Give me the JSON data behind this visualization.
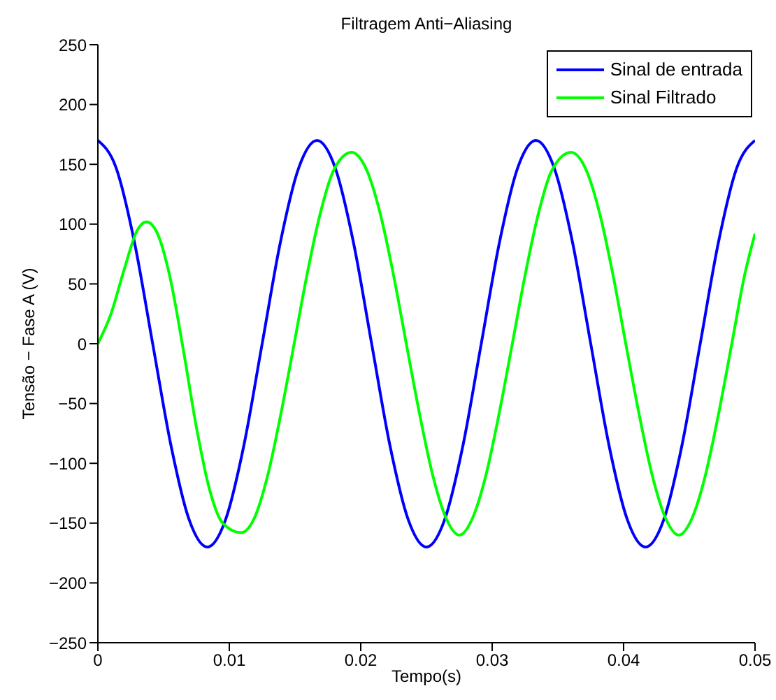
{
  "chart_data": {
    "type": "line",
    "title": "Filtragem Anti−Aliasing",
    "xlabel": "Tempo(s)",
    "ylabel": "Tensão − Fase A (V)",
    "xlim": [
      0,
      0.05
    ],
    "xticks": [
      0,
      0.01,
      0.02,
      0.03,
      0.04,
      0.05
    ],
    "ylim": [
      -250,
      250
    ],
    "yticks": [
      -250,
      -200,
      -150,
      -100,
      -50,
      0,
      50,
      100,
      150,
      200,
      250
    ],
    "grid": false,
    "legend": "top right",
    "marker": "none",
    "line_style": "solid",
    "series": [
      {
        "name": "Sinal de entrada",
        "color": "#0000ff",
        "x": [
          0,
          0.00139,
          0.00278,
          0.00417,
          0.00556,
          0.00694,
          0.00833,
          0.00972,
          0.01111,
          0.0125,
          0.01389,
          0.01528,
          0.01667,
          0.01806,
          0.01944,
          0.02083,
          0.02222,
          0.02361,
          0.025,
          0.02639,
          0.02778,
          0.02917,
          0.03056,
          0.03194,
          0.03333,
          0.03472,
          0.03611,
          0.0375,
          0.03889,
          0.04028,
          0.04167,
          0.04306,
          0.04444,
          0.04583,
          0.04722,
          0.04861,
          0.05
        ],
        "values": [
          170,
          147,
          85,
          0,
          -85,
          -147,
          -170,
          -147,
          -85,
          0,
          85,
          147,
          170,
          147,
          85,
          0,
          -85,
          -147,
          -170,
          -147,
          -85,
          0,
          85,
          147,
          170,
          147,
          85,
          0,
          -85,
          -147,
          -170,
          -147,
          -85,
          0,
          85,
          147,
          170
        ]
      },
      {
        "name": "Sinal Filtrado",
        "color": "#00ff00",
        "x": [
          0,
          0.001,
          0.002,
          0.003,
          0.0037,
          0.0045,
          0.0055,
          0.0065,
          0.0075,
          0.0085,
          0.0095,
          0.0109,
          0.0119,
          0.0129,
          0.0139,
          0.0149,
          0.0159,
          0.0169,
          0.0179,
          0.0193,
          0.0205,
          0.0215,
          0.0225,
          0.0235,
          0.0245,
          0.0255,
          0.0265,
          0.0275,
          0.0285,
          0.0295,
          0.0305,
          0.0315,
          0.0325,
          0.0335,
          0.0345,
          0.036,
          0.0372,
          0.0382,
          0.0392,
          0.0402,
          0.0412,
          0.0422,
          0.0432,
          0.0442,
          0.0452,
          0.0462,
          0.0472,
          0.0482,
          0.0492,
          0.05
        ],
        "values": [
          0,
          25,
          62,
          95,
          102,
          93,
          55,
          -5,
          -70,
          -122,
          -150,
          -158,
          -146,
          -111,
          -60,
          -2,
          57,
          108,
          144,
          160,
          144,
          108,
          57,
          -2,
          -60,
          -111,
          -146,
          -160,
          -146,
          -111,
          -60,
          -2,
          57,
          108,
          144,
          160,
          144,
          108,
          57,
          -2,
          -60,
          -111,
          -146,
          -160,
          -146,
          -111,
          -60,
          -2,
          57,
          92
        ]
      }
    ]
  }
}
